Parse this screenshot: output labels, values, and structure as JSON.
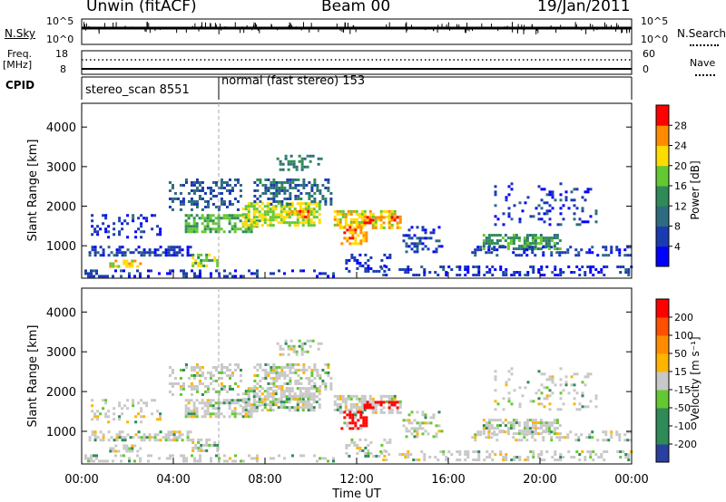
{
  "header": {
    "title": "Unwin (fitACF)",
    "beam": "Beam 00",
    "date": "19/Jan/2011"
  },
  "nsky_panel": {
    "left_label": "N.Sky",
    "right_label": "N.Search",
    "top_tick": "10^5",
    "bottom_tick": "10^0"
  },
  "freq_panel": {
    "left_label": "Freq.",
    "left_unit": "[MHz]",
    "left_ticks": [
      "18",
      "8"
    ],
    "right_label": "Nave",
    "right_ticks": [
      "60",
      "0"
    ]
  },
  "cpid_panel": {
    "label": "CPID",
    "program_1": "stereo_scan 8551",
    "program_2": "normal (fast stereo) 153"
  },
  "chart_data": [
    {
      "type": "heatmap",
      "name": "power",
      "ylabel": "Slant Range [km]",
      "ylim": [
        180,
        4600
      ],
      "yticks": [
        1000,
        2000,
        3000,
        4000
      ],
      "xlim": [
        0,
        24
      ],
      "colorbar": {
        "label": "Power [dB]",
        "range": [
          0,
          32
        ],
        "ticks": [
          "4",
          "8",
          "12",
          "16",
          "20",
          "24",
          "28"
        ],
        "colors": [
          "#0000ff",
          "#1a3bb0",
          "#2f6b80",
          "#2e8b57",
          "#64c832",
          "#ffdc00",
          "#ff8c00",
          "#ff0000"
        ]
      }
    },
    {
      "type": "heatmap",
      "name": "velocity",
      "ylabel": "Slant Range [km]",
      "ylim": [
        180,
        4600
      ],
      "yticks": [
        1000,
        2000,
        3000,
        4000
      ],
      "xlim": [
        0,
        24
      ],
      "xlabel": "Time UT",
      "xticks": [
        "00:00",
        "04:00",
        "08:00",
        "12:00",
        "16:00",
        "20:00",
        "00:00"
      ],
      "colorbar": {
        "label": "Velocity [m s⁻¹]",
        "ticks": [
          "200",
          "100",
          "50",
          "15",
          "-15",
          "-50",
          "-100",
          "-200"
        ],
        "colors": [
          "#2a40a0",
          "#2e8b57",
          "#2e8b57",
          "#64c832",
          "#c8c8c8",
          "#ffb400",
          "#ff8c00",
          "#ff5000",
          "#ff0000"
        ]
      }
    }
  ]
}
